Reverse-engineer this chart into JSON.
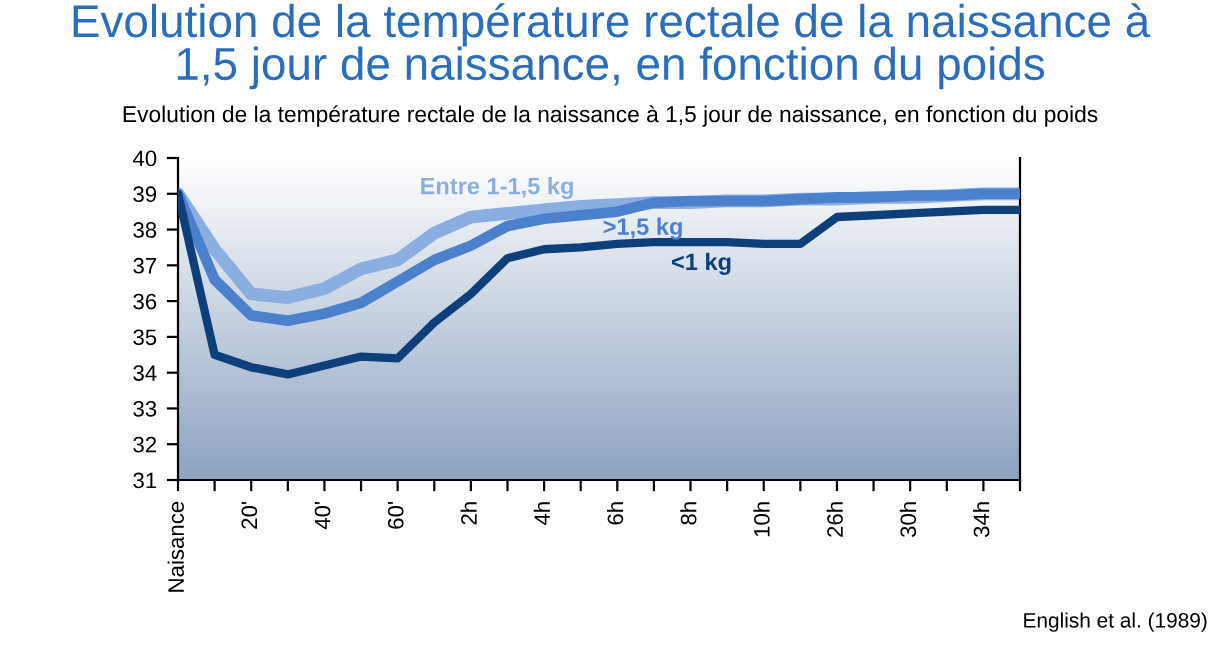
{
  "chart_data": {
    "type": "line",
    "title": "Evolution de la température rectale de la naissance à\n1,5 jour de naissance, en fonction du poids",
    "subtitle": "Evolution de la température rectale de la naissance à 1,5 jour de naissance, en fonction du poids",
    "annotations": [
      "English et al. (1989)"
    ],
    "categories": [
      "Naisance",
      null,
      "20'",
      null,
      "40'",
      null,
      "60'",
      null,
      "2h",
      null,
      "4h",
      null,
      "6h",
      null,
      "8h",
      null,
      "10h",
      null,
      "26h",
      null,
      "30h",
      null,
      "34h",
      null
    ],
    "ylim": [
      31,
      40
    ],
    "yticks": [
      31,
      32,
      33,
      34,
      35,
      36,
      37,
      38,
      39,
      40
    ],
    "grid": false,
    "legend": false,
    "marker": "none",
    "line_style": "solid",
    "series": [
      {
        "name": "Entre 1-1,5 kg",
        "color": "#8aaee0",
        "values": [
          39,
          37.45,
          36.2,
          36.1,
          36.35,
          36.9,
          37.15,
          37.9,
          38.35,
          38.45,
          38.55,
          38.65,
          38.7,
          38.75,
          38.75,
          38.8,
          38.8,
          38.85,
          38.85,
          38.9,
          38.9,
          38.95,
          39.0,
          39.0
        ]
      },
      {
        "name": ">1,5 kg",
        "color": "#4a80cc",
        "values": [
          39,
          36.6,
          35.6,
          35.45,
          35.65,
          35.95,
          36.55,
          37.15,
          37.55,
          38.1,
          38.3,
          38.4,
          38.5,
          38.75,
          38.8,
          38.8,
          38.8,
          38.85,
          38.9,
          38.9,
          38.95,
          38.95,
          39.0,
          39.0
        ]
      },
      {
        "name": "<1 kg",
        "color": "#0d3f7a",
        "values": [
          39,
          34.5,
          34.15,
          33.95,
          34.2,
          34.45,
          34.4,
          35.4,
          36.2,
          37.2,
          37.45,
          37.5,
          37.6,
          37.65,
          37.65,
          37.65,
          37.6,
          37.6,
          38.35,
          38.4,
          38.45,
          38.5,
          38.55,
          38.55
        ]
      }
    ]
  }
}
